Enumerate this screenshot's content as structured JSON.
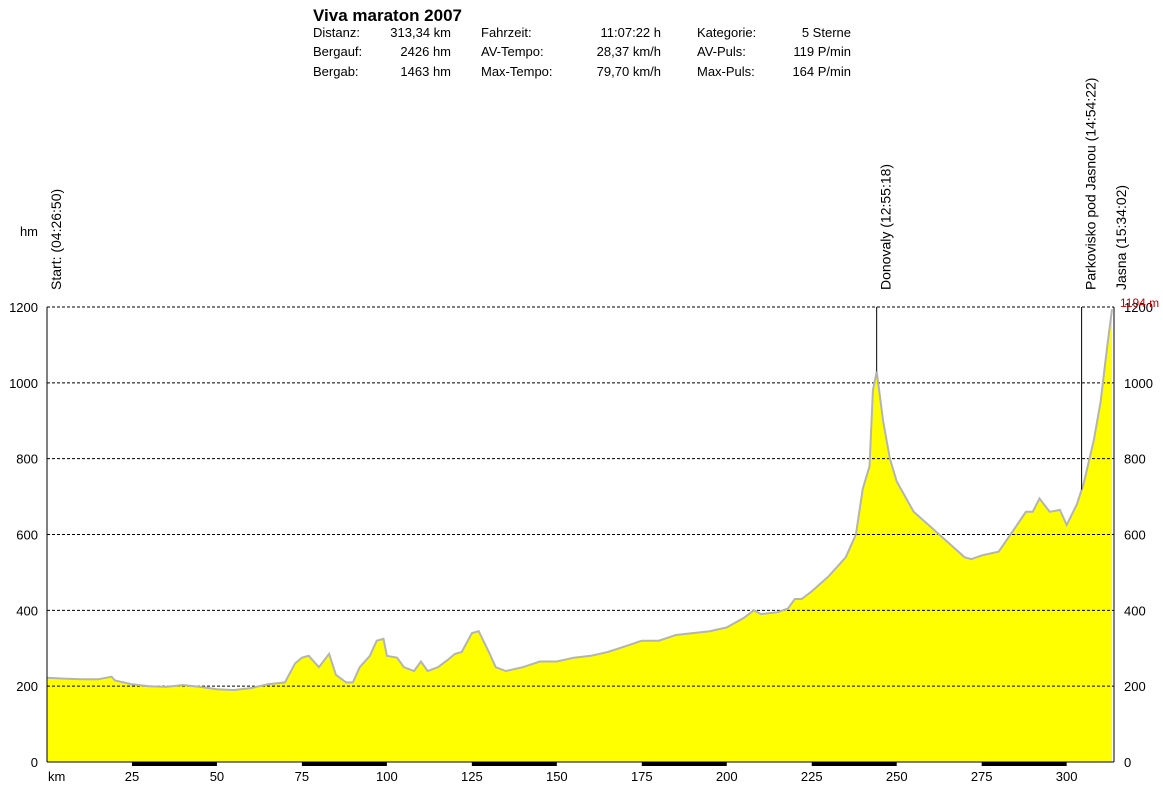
{
  "chart_data": {
    "type": "area",
    "title": "Viva maraton 2007",
    "stats": [
      [
        [
          "Distanz:",
          "313,34 km"
        ],
        [
          "Bergauf:",
          "2426 hm"
        ],
        [
          "Bergab:",
          "1463 hm"
        ]
      ],
      [
        [
          "Fahrzeit:",
          "11:07:22 h"
        ],
        [
          "AV-Tempo:",
          "28,37 km/h"
        ],
        [
          "Max-Tempo:",
          "79,70 km/h"
        ]
      ],
      [
        [
          "Kategorie:",
          "5 Sterne"
        ],
        [
          "AV-Puls:",
          "119 P/min"
        ],
        [
          "Max-Puls:",
          "164 P/min"
        ]
      ]
    ],
    "x_label": "km",
    "y_label": "hm",
    "x": [
      0,
      5,
      10,
      15,
      19,
      20,
      25,
      30,
      35,
      40,
      45,
      50,
      55,
      60,
      65,
      70,
      73,
      75,
      77,
      80,
      83,
      85,
      88,
      90,
      92,
      95,
      97,
      99,
      100,
      103,
      105,
      108,
      110,
      112,
      115,
      118,
      120,
      122,
      125,
      127,
      130,
      132,
      135,
      140,
      145,
      150,
      155,
      160,
      165,
      170,
      175,
      180,
      185,
      190,
      195,
      200,
      205,
      208,
      210,
      215,
      218,
      220,
      222,
      225,
      230,
      235,
      238,
      240,
      242,
      243,
      244.1,
      246,
      248,
      250,
      255,
      260,
      265,
      270,
      272,
      275,
      280,
      285,
      288,
      290,
      292,
      295,
      298,
      300,
      303,
      305,
      308,
      310,
      312,
      313.34
    ],
    "values": [
      222,
      220,
      218,
      218,
      225,
      215,
      205,
      200,
      198,
      203,
      198,
      192,
      190,
      195,
      205,
      210,
      260,
      275,
      280,
      250,
      285,
      230,
      210,
      210,
      250,
      280,
      320,
      325,
      280,
      275,
      250,
      240,
      265,
      240,
      250,
      270,
      285,
      290,
      340,
      345,
      290,
      250,
      240,
      250,
      265,
      265,
      275,
      280,
      290,
      305,
      320,
      320,
      335,
      340,
      345,
      355,
      380,
      400,
      390,
      395,
      405,
      430,
      430,
      450,
      490,
      540,
      600,
      720,
      780,
      980,
      1030,
      900,
      800,
      740,
      660,
      620,
      580,
      540,
      535,
      545,
      555,
      620,
      660,
      660,
      695,
      660,
      665,
      625,
      680,
      735,
      850,
      950,
      1100,
      1194
    ],
    "color": "#ffff00",
    "line_color": "#b4b4b4",
    "end_label": "1194 m",
    "annotations": [
      {
        "x": 0,
        "text": "Start: (04:26:50)"
      },
      {
        "x": 244.1,
        "text": "Donovaly (12:55:18)"
      },
      {
        "x": 304.4,
        "text": "Parkovisko pod Jasnou (14:54:22)"
      },
      {
        "x": 313.34,
        "text": "Jasna (15:34:02)"
      }
    ],
    "xlim": [
      0,
      313.34
    ],
    "ylim": [
      0,
      1200
    ],
    "xticks": [
      25,
      50,
      75,
      100,
      125,
      150,
      175,
      200,
      225,
      250,
      275,
      300
    ],
    "yticks": [
      0,
      200,
      400,
      600,
      800,
      1000,
      1200
    ],
    "grid": true
  }
}
